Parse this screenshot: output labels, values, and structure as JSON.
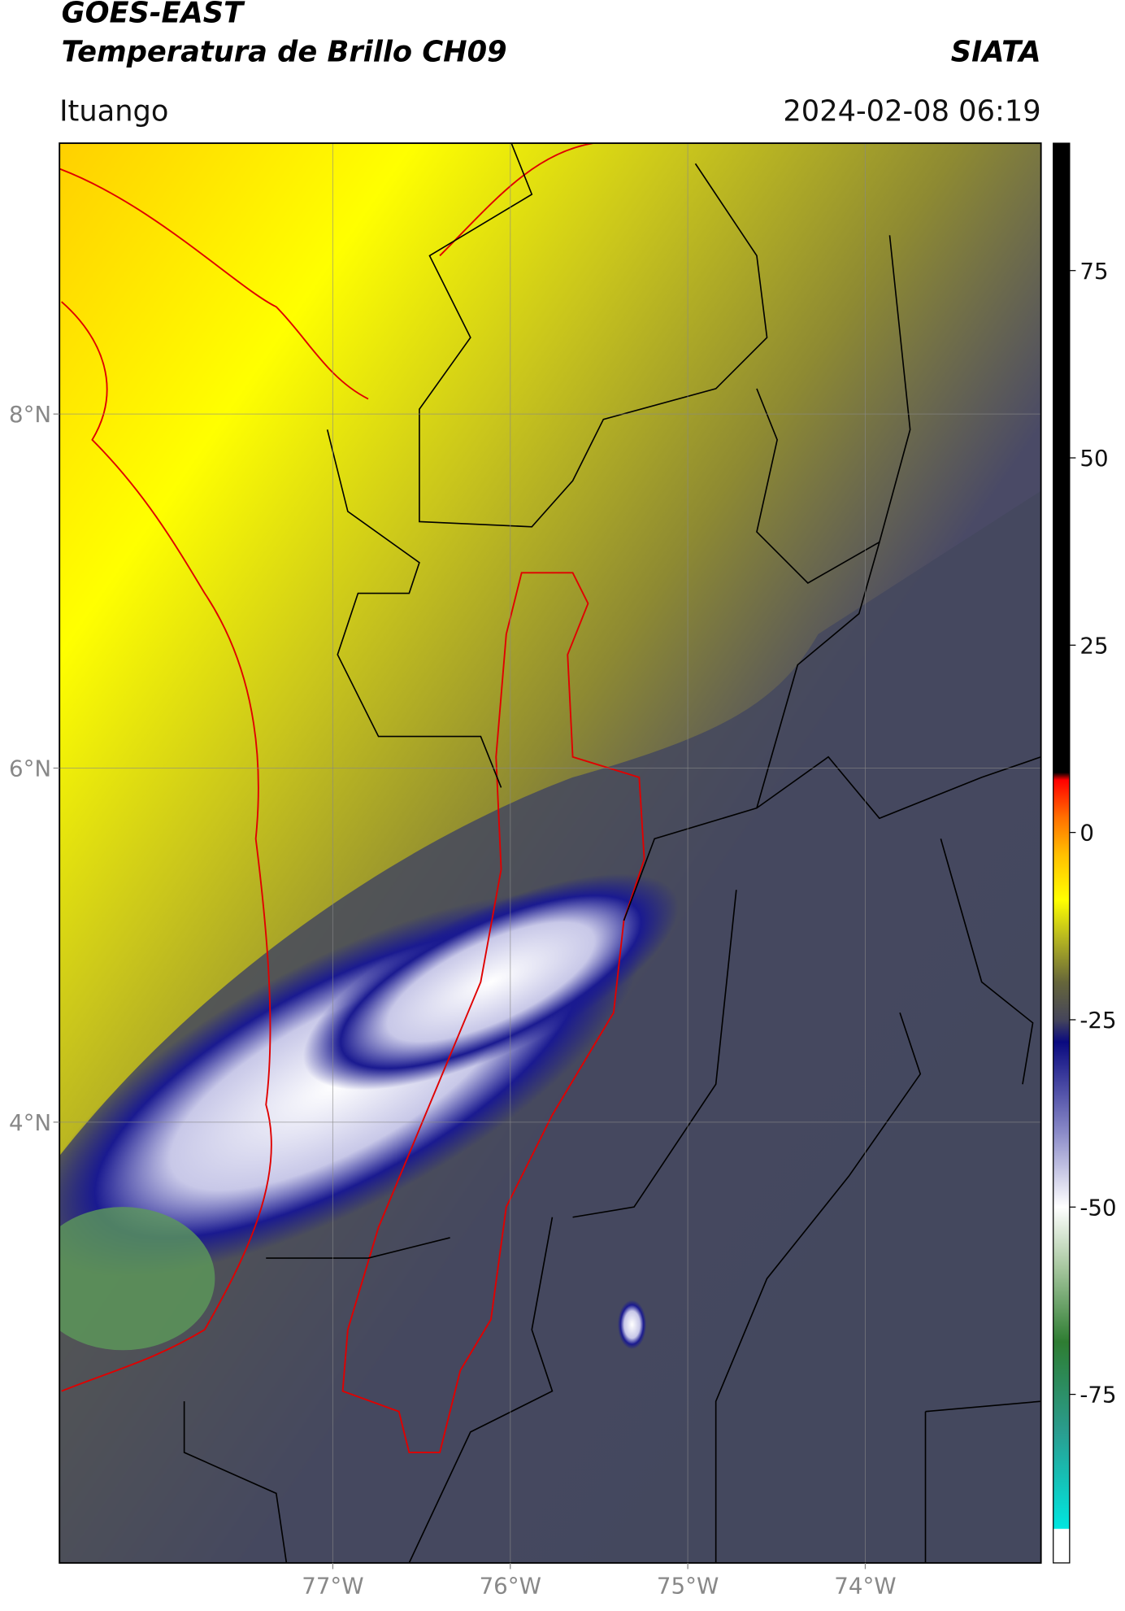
{
  "chart_data": {
    "type": "map",
    "title": "GOES-EAST",
    "subtitle": "Temperatura de Brillo CH09",
    "source": "SIATA",
    "region": "Ituango",
    "datetime": "2024-02-08 06:19",
    "xlim": [
      -78.54,
      -73.01
    ],
    "ylim": [
      1.51,
      9.53
    ],
    "xticks": [
      {
        "value": -77,
        "label": "77°W"
      },
      {
        "value": -76,
        "label": "76°W"
      },
      {
        "value": -75,
        "label": "75°W"
      },
      {
        "value": -74,
        "label": "74°W"
      }
    ],
    "yticks": [
      {
        "value": 4,
        "label": "4°N"
      },
      {
        "value": 6,
        "label": "6°N"
      },
      {
        "value": 8,
        "label": "8°N"
      }
    ],
    "grid": true,
    "colorbar": {
      "clim": [
        -97.5,
        92
      ],
      "ticks": [
        -75,
        -50,
        -25,
        0,
        25,
        50,
        75
      ],
      "colormap": [
        {
          "value": -97.5,
          "color": "#ffffff"
        },
        {
          "value": -93,
          "color": "#ffffff"
        },
        {
          "value": -92.9,
          "color": "#00e6e0"
        },
        {
          "value": -80,
          "color": "#2a9d8f"
        },
        {
          "value": -68,
          "color": "#2e7d32"
        },
        {
          "value": -58,
          "color": "#a8c8a0"
        },
        {
          "value": -50,
          "color": "#ffffff"
        },
        {
          "value": -40,
          "color": "#8a8ac8"
        },
        {
          "value": -28,
          "color": "#0a0a80"
        },
        {
          "value": -25,
          "color": "#45455a"
        },
        {
          "value": -20,
          "color": "#66663a"
        },
        {
          "value": -14,
          "color": "#b8b820"
        },
        {
          "value": -9,
          "color": "#ffff00"
        },
        {
          "value": -3,
          "color": "#ffc000"
        },
        {
          "value": 2,
          "color": "#ff7000"
        },
        {
          "value": 7,
          "color": "#ff0000"
        },
        {
          "value": 8,
          "color": "#000000"
        },
        {
          "value": 92,
          "color": "#000000"
        }
      ]
    }
  }
}
